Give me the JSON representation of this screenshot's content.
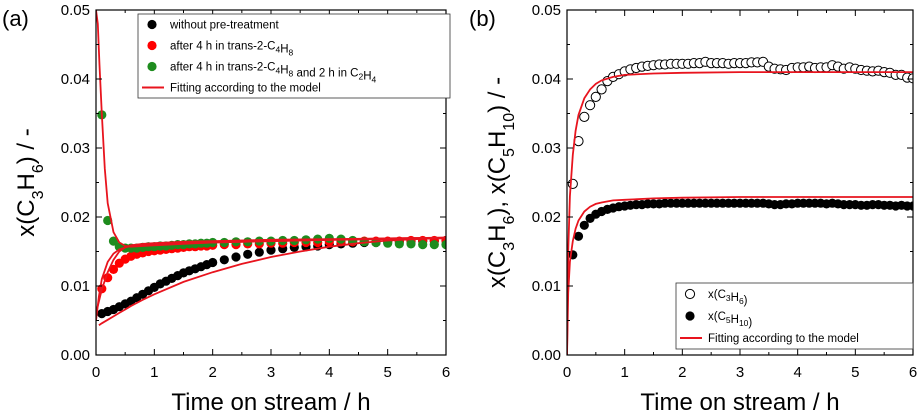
{
  "chart_data": [
    {
      "type": "scatter",
      "panel_label": "(a)",
      "xlabel": "Time on stream / h",
      "ylabel": {
        "base": "x(C",
        "sub1": "3",
        "mid": "H",
        "sub2": "6",
        "tail": ") / -"
      },
      "xlim": [
        0,
        6
      ],
      "ylim": [
        0,
        0.05
      ],
      "xticks": [
        0,
        1,
        2,
        3,
        4,
        5,
        6
      ],
      "xtick_labels": [
        "0",
        "1",
        "2",
        "3",
        "4",
        "5",
        "6"
      ],
      "yticks": [
        0,
        0.01,
        0.02,
        0.03,
        0.04,
        0.05
      ],
      "ytick_labels": [
        "0.00",
        "0.01",
        "0.02",
        "0.03",
        "0.04",
        "0.05"
      ],
      "grid": false,
      "legend_position": "top-right",
      "legend": [
        {
          "marker": "filled-circle",
          "color": "#000000",
          "parts": [
            {
              "t": "without pre-treatment"
            }
          ]
        },
        {
          "marker": "filled-circle",
          "color": "#ff0000",
          "parts": [
            {
              "t": "after 4 h in trans-2-C"
            },
            {
              "t": "4",
              "sub": true
            },
            {
              "t": "H"
            },
            {
              "t": "8",
              "sub": true
            }
          ]
        },
        {
          "marker": "filled-circle",
          "color": "#1e8c1e",
          "parts": [
            {
              "t": "after 4 h in trans-2-C"
            },
            {
              "t": "4",
              "sub": true
            },
            {
              "t": "H"
            },
            {
              "t": "8",
              "sub": true
            },
            {
              "t": " and 2 h in C"
            },
            {
              "t": "2",
              "sub": true
            },
            {
              "t": "H"
            },
            {
              "t": "4",
              "sub": true
            }
          ]
        },
        {
          "marker": "line",
          "color": "#e8141e",
          "parts": [
            {
              "t": "Fitting according to the model"
            }
          ]
        }
      ],
      "series": [
        {
          "name": "without pre-treatment",
          "style": "filled",
          "color": "#000000",
          "x": [
            0.1,
            0.2,
            0.3,
            0.4,
            0.5,
            0.6,
            0.7,
            0.8,
            0.9,
            1.0,
            1.1,
            1.2,
            1.3,
            1.4,
            1.5,
            1.6,
            1.7,
            1.8,
            1.9,
            2.0,
            2.2,
            2.4,
            2.6,
            2.8,
            3.0,
            3.2,
            3.4,
            3.6,
            3.8,
            4.0,
            4.2,
            4.4,
            4.6,
            4.8,
            5.0,
            5.2,
            5.4,
            5.6,
            5.8,
            6.0
          ],
          "y": [
            0.006,
            0.0063,
            0.0066,
            0.007,
            0.0074,
            0.0078,
            0.0083,
            0.0088,
            0.0093,
            0.0098,
            0.0103,
            0.0107,
            0.0111,
            0.0115,
            0.0119,
            0.0122,
            0.0125,
            0.0128,
            0.0131,
            0.0134,
            0.0138,
            0.0142,
            0.0146,
            0.0149,
            0.0152,
            0.0154,
            0.0156,
            0.0157,
            0.0158,
            0.016,
            0.0161,
            0.0162,
            0.0163,
            0.0163,
            0.0164,
            0.0164,
            0.0165,
            0.0165,
            0.0165,
            0.0166
          ]
        },
        {
          "name": "after 4 h in trans-2-C4H8",
          "style": "filled",
          "color": "#ff0000",
          "x": [
            0.1,
            0.2,
            0.3,
            0.4,
            0.5,
            0.6,
            0.7,
            0.8,
            0.9,
            1.0,
            1.1,
            1.2,
            1.3,
            1.4,
            1.5,
            1.6,
            1.7,
            1.8,
            1.9,
            2.0,
            2.2,
            2.4,
            2.6,
            2.8,
            3.0,
            3.2,
            3.4,
            3.6,
            3.8,
            4.0,
            4.2,
            4.4,
            4.6,
            4.8,
            5.0,
            5.2,
            5.4,
            5.6,
            5.8,
            6.0
          ],
          "y": [
            0.0096,
            0.0112,
            0.0124,
            0.0133,
            0.0139,
            0.0143,
            0.0146,
            0.0148,
            0.015,
            0.0151,
            0.0152,
            0.0153,
            0.0154,
            0.0155,
            0.0156,
            0.0157,
            0.0157,
            0.0158,
            0.0158,
            0.0159,
            0.016,
            0.016,
            0.0161,
            0.0161,
            0.0162,
            0.0162,
            0.0163,
            0.0163,
            0.0163,
            0.0164,
            0.0164,
            0.0164,
            0.0165,
            0.0165,
            0.0165,
            0.0165,
            0.0166,
            0.0166,
            0.0166,
            0.0166
          ]
        },
        {
          "name": "after 4 h in trans-2-C4H8 and 2 h in C2H4",
          "style": "filled",
          "color": "#1e8c1e",
          "x": [
            0.1,
            0.2,
            0.3,
            0.4,
            0.5,
            0.6,
            0.7,
            0.8,
            0.9,
            1.0,
            1.1,
            1.2,
            1.3,
            1.4,
            1.5,
            1.6,
            1.7,
            1.8,
            1.9,
            2.0,
            2.2,
            2.4,
            2.6,
            2.8,
            3.0,
            3.2,
            3.4,
            3.6,
            3.8,
            4.0,
            4.2,
            4.4,
            4.6,
            4.8,
            5.0,
            5.2,
            5.4,
            5.6,
            5.8,
            6.0
          ],
          "y": [
            0.0348,
            0.0195,
            0.0165,
            0.0157,
            0.0155,
            0.0155,
            0.0155,
            0.0156,
            0.0157,
            0.0157,
            0.0158,
            0.0158,
            0.0159,
            0.016,
            0.016,
            0.0161,
            0.0161,
            0.0162,
            0.0162,
            0.0163,
            0.0163,
            0.0164,
            0.0164,
            0.0165,
            0.0165,
            0.0166,
            0.0166,
            0.0167,
            0.0168,
            0.0169,
            0.0168,
            0.0166,
            0.0164,
            0.0163,
            0.0162,
            0.0161,
            0.0161,
            0.016,
            0.016,
            0.016
          ]
        }
      ],
      "fits": [
        {
          "name": "Fitting according to the model",
          "color": "#e8141e",
          "x": [
            0.05,
            0.1,
            0.2,
            0.3,
            0.4,
            0.5,
            0.6,
            0.8,
            1.0,
            1.5,
            2.0,
            2.5,
            3.0,
            3.5,
            4.0,
            4.5,
            5.0,
            5.5,
            6.0
          ],
          "y": [
            0.0043,
            0.0046,
            0.0051,
            0.0056,
            0.0061,
            0.0066,
            0.0071,
            0.008,
            0.0088,
            0.0106,
            0.012,
            0.0132,
            0.0142,
            0.015,
            0.0157,
            0.0162,
            0.0166,
            0.0168,
            0.017
          ]
        },
        {
          "name": "Fitting according to the model",
          "color": "#e8141e",
          "x": [
            0.0,
            0.05,
            0.1,
            0.2,
            0.3,
            0.4,
            0.5,
            0.6,
            0.8,
            1.0,
            1.5,
            2.0,
            3.0,
            4.0,
            5.0,
            6.0
          ],
          "y": [
            0.005,
            0.0085,
            0.011,
            0.0135,
            0.0147,
            0.0153,
            0.0156,
            0.0158,
            0.0159,
            0.016,
            0.0162,
            0.0163,
            0.0165,
            0.0167,
            0.0168,
            0.0169
          ]
        },
        {
          "name": "Fitting according to the model",
          "color": "#e8141e",
          "x": [
            0.0,
            0.03,
            0.06,
            0.1,
            0.15,
            0.2,
            0.3,
            0.4,
            0.5,
            0.6,
            0.8,
            1.0,
            1.5,
            2.0,
            3.0,
            4.0,
            5.0,
            6.0
          ],
          "y": [
            0.05,
            0.048,
            0.042,
            0.035,
            0.027,
            0.022,
            0.0178,
            0.0163,
            0.0158,
            0.0157,
            0.0158,
            0.0159,
            0.0161,
            0.0163,
            0.0165,
            0.0167,
            0.0169,
            0.017
          ]
        },
        {
          "name": "Fitting according to the model",
          "color": "#e8141e",
          "x": [
            0.0,
            0.1,
            0.2,
            0.3,
            0.4,
            0.5,
            0.6,
            0.8,
            1.0,
            1.5,
            2.0,
            3.0,
            4.0,
            5.0,
            6.0
          ],
          "y": [
            0.006,
            0.0095,
            0.012,
            0.0138,
            0.015,
            0.0156,
            0.0159,
            0.0161,
            0.0162,
            0.0164,
            0.0165,
            0.0167,
            0.0168,
            0.0169,
            0.017
          ]
        }
      ]
    },
    {
      "type": "scatter",
      "panel_label": "(b)",
      "xlabel": "Time on stream / h",
      "ylabel": {
        "base": "x(C",
        "sub1": "3",
        "mid": "H",
        "sub2": "6",
        "mid2": "), x(C",
        "sub3": "5",
        "mid3": "H",
        "sub4": "10",
        "tail": ") / -"
      },
      "xlim": [
        0,
        6
      ],
      "ylim": [
        0,
        0.05
      ],
      "xticks": [
        0,
        1,
        2,
        3,
        4,
        5,
        6
      ],
      "xtick_labels": [
        "0",
        "1",
        "2",
        "3",
        "4",
        "5",
        "6"
      ],
      "yticks": [
        0,
        0.01,
        0.02,
        0.03,
        0.04,
        0.05
      ],
      "ytick_labels": [
        "0.00",
        "0.01",
        "0.02",
        "0.03",
        "0.04",
        "0.05"
      ],
      "grid": false,
      "legend_position": "bottom-right",
      "legend": [
        {
          "marker": "open-circle",
          "color": "#000000",
          "parts": [
            {
              "t": "x(C"
            },
            {
              "t": "3",
              "sub": true
            },
            {
              "t": "H"
            },
            {
              "t": "6",
              "sub": true
            },
            {
              "t": ")"
            }
          ]
        },
        {
          "marker": "filled-circle",
          "color": "#000000",
          "parts": [
            {
              "t": "x(C"
            },
            {
              "t": "5",
              "sub": true
            },
            {
              "t": "H"
            },
            {
              "t": "10",
              "sub": true
            },
            {
              "t": ")"
            }
          ]
        },
        {
          "marker": "line",
          "color": "#e8141e",
          "parts": [
            {
              "t": "Fitting according to the model"
            }
          ]
        }
      ],
      "series": [
        {
          "name": "x(C3H6)",
          "style": "open",
          "color": "#000000",
          "x": [
            0.1,
            0.2,
            0.3,
            0.4,
            0.5,
            0.6,
            0.7,
            0.8,
            0.9,
            1.0,
            1.1,
            1.2,
            1.3,
            1.4,
            1.5,
            1.6,
            1.7,
            1.8,
            1.9,
            2.0,
            2.1,
            2.2,
            2.3,
            2.4,
            2.5,
            2.6,
            2.7,
            2.8,
            2.9,
            3.0,
            3.1,
            3.2,
            3.3,
            3.4,
            3.5,
            3.6,
            3.7,
            3.8,
            3.9,
            4.0,
            4.1,
            4.2,
            4.3,
            4.4,
            4.5,
            4.6,
            4.7,
            4.8,
            4.9,
            5.0,
            5.1,
            5.2,
            5.3,
            5.4,
            5.5,
            5.6,
            5.7,
            5.8,
            5.9,
            6.0
          ],
          "y": [
            0.0248,
            0.031,
            0.0345,
            0.0362,
            0.0374,
            0.0385,
            0.0397,
            0.0403,
            0.0407,
            0.0411,
            0.0414,
            0.0416,
            0.0418,
            0.0419,
            0.042,
            0.0421,
            0.0421,
            0.0422,
            0.0422,
            0.0422,
            0.0422,
            0.0423,
            0.0423,
            0.0425,
            0.0423,
            0.0423,
            0.0423,
            0.0422,
            0.0423,
            0.0423,
            0.0423,
            0.0424,
            0.0424,
            0.0425,
            0.0418,
            0.0415,
            0.0414,
            0.0413,
            0.0416,
            0.0417,
            0.0417,
            0.0418,
            0.0416,
            0.0417,
            0.0417,
            0.042,
            0.0418,
            0.0415,
            0.0417,
            0.0415,
            0.0413,
            0.0412,
            0.0411,
            0.0412,
            0.041,
            0.0409,
            0.0406,
            0.0406,
            0.0402,
            0.0401
          ]
        },
        {
          "name": "x(C5H10)",
          "style": "filled",
          "color": "#000000",
          "x": [
            0.1,
            0.2,
            0.3,
            0.4,
            0.5,
            0.6,
            0.7,
            0.8,
            0.9,
            1.0,
            1.1,
            1.2,
            1.3,
            1.4,
            1.5,
            1.6,
            1.7,
            1.8,
            1.9,
            2.0,
            2.1,
            2.2,
            2.3,
            2.4,
            2.5,
            2.6,
            2.7,
            2.8,
            2.9,
            3.0,
            3.1,
            3.2,
            3.3,
            3.4,
            3.5,
            3.6,
            3.7,
            3.8,
            3.9,
            4.0,
            4.1,
            4.2,
            4.3,
            4.4,
            4.5,
            4.6,
            4.7,
            4.8,
            4.9,
            5.0,
            5.1,
            5.2,
            5.3,
            5.4,
            5.5,
            5.6,
            5.7,
            5.8,
            5.9,
            6.0
          ],
          "y": [
            0.0145,
            0.0172,
            0.0188,
            0.0198,
            0.0204,
            0.0208,
            0.0211,
            0.0213,
            0.0215,
            0.0216,
            0.0217,
            0.0218,
            0.0218,
            0.0219,
            0.0219,
            0.0219,
            0.022,
            0.022,
            0.022,
            0.022,
            0.022,
            0.022,
            0.022,
            0.022,
            0.022,
            0.022,
            0.022,
            0.022,
            0.022,
            0.022,
            0.022,
            0.022,
            0.022,
            0.022,
            0.0219,
            0.0218,
            0.0218,
            0.0219,
            0.0219,
            0.022,
            0.022,
            0.022,
            0.022,
            0.022,
            0.0219,
            0.022,
            0.0219,
            0.0218,
            0.0218,
            0.0218,
            0.0217,
            0.0217,
            0.0218,
            0.0218,
            0.0217,
            0.0217,
            0.0216,
            0.0217,
            0.0216,
            0.0216
          ]
        }
      ],
      "fits": [
        {
          "name": "Fitting according to the model",
          "color": "#e8141e",
          "x": [
            0.0,
            0.02,
            0.05,
            0.1,
            0.15,
            0.2,
            0.3,
            0.4,
            0.5,
            0.6,
            0.8,
            1.0,
            1.5,
            2.0,
            3.0,
            4.0,
            5.0,
            6.0
          ],
          "y": [
            0.0,
            0.015,
            0.023,
            0.029,
            0.0325,
            0.0348,
            0.0372,
            0.0385,
            0.0393,
            0.0398,
            0.0403,
            0.0406,
            0.0408,
            0.0409,
            0.041,
            0.041,
            0.041,
            0.041
          ]
        },
        {
          "name": "Fitting according to the model",
          "color": "#e8141e",
          "x": [
            0.0,
            0.02,
            0.05,
            0.1,
            0.15,
            0.2,
            0.3,
            0.4,
            0.5,
            0.6,
            0.8,
            1.0,
            1.5,
            2.0,
            3.0,
            4.0,
            5.0,
            6.0
          ],
          "y": [
            0.0,
            0.009,
            0.0135,
            0.0165,
            0.0183,
            0.0195,
            0.0208,
            0.0215,
            0.0219,
            0.0221,
            0.0224,
            0.0225,
            0.0227,
            0.0228,
            0.0229,
            0.0229,
            0.0229,
            0.0229
          ]
        }
      ]
    }
  ]
}
